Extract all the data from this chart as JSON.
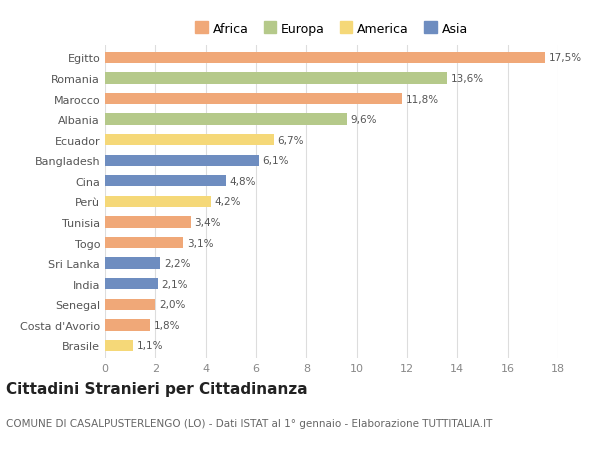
{
  "categories": [
    "Egitto",
    "Romania",
    "Marocco",
    "Albania",
    "Ecuador",
    "Bangladesh",
    "Cina",
    "Perù",
    "Tunisia",
    "Togo",
    "Sri Lanka",
    "India",
    "Senegal",
    "Costa d'Avorio",
    "Brasile"
  ],
  "values": [
    17.5,
    13.6,
    11.8,
    9.6,
    6.7,
    6.1,
    4.8,
    4.2,
    3.4,
    3.1,
    2.2,
    2.1,
    2.0,
    1.8,
    1.1
  ],
  "labels": [
    "17,5%",
    "13,6%",
    "11,8%",
    "9,6%",
    "6,7%",
    "6,1%",
    "4,8%",
    "4,2%",
    "3,4%",
    "3,1%",
    "2,2%",
    "2,1%",
    "2,0%",
    "1,8%",
    "1,1%"
  ],
  "continents": [
    "Africa",
    "Europa",
    "Africa",
    "Europa",
    "America",
    "Asia",
    "Asia",
    "America",
    "Africa",
    "Africa",
    "Asia",
    "Asia",
    "Africa",
    "Africa",
    "America"
  ],
  "colors": {
    "Africa": "#F0A878",
    "Europa": "#B5C98A",
    "America": "#F5D878",
    "Asia": "#6E8DC0"
  },
  "legend_labels": [
    "Africa",
    "Europa",
    "America",
    "Asia"
  ],
  "legend_colors": [
    "#F0A878",
    "#B5C98A",
    "#F5D878",
    "#6E8DC0"
  ],
  "title": "Cittadini Stranieri per Cittadinanza",
  "subtitle": "COMUNE DI CASALPUSTERLENGO (LO) - Dati ISTAT al 1° gennaio - Elaborazione TUTTITALIA.IT",
  "xlim": [
    0,
    18
  ],
  "xticks": [
    0,
    2,
    4,
    6,
    8,
    10,
    12,
    14,
    16,
    18
  ],
  "background_color": "#ffffff",
  "grid_color": "#dddddd",
  "bar_height": 0.55,
  "label_fontsize": 7.5,
  "tick_fontsize": 8,
  "title_fontsize": 11,
  "subtitle_fontsize": 7.5
}
